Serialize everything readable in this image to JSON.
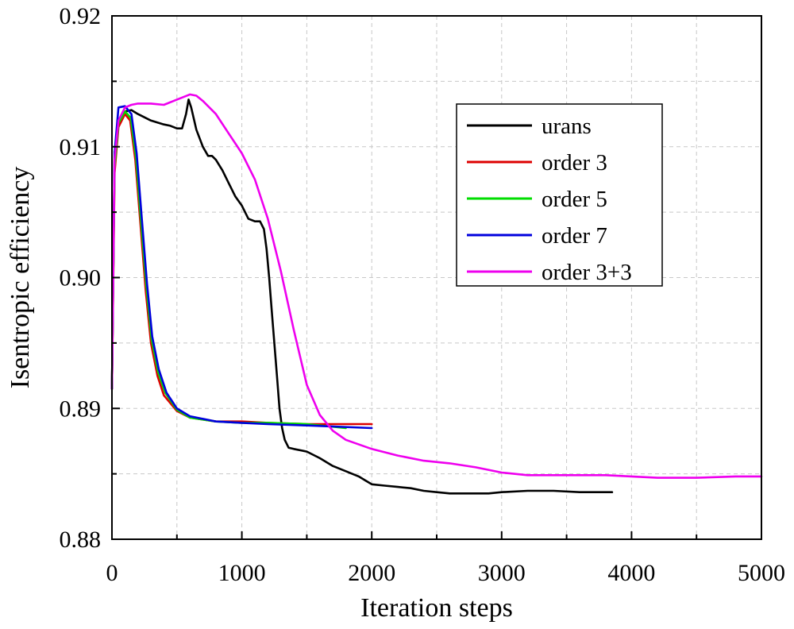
{
  "chart_data": {
    "type": "line",
    "title": "",
    "xlabel": "Iteration steps",
    "ylabel": "Isentropic efficiency",
    "xlim": [
      0,
      5000
    ],
    "ylim": [
      0.88,
      0.92
    ],
    "xticks": [
      0,
      1000,
      2000,
      3000,
      4000,
      5000
    ],
    "xtick_labels": [
      "0",
      "1000",
      "2000",
      "3000",
      "4000",
      "5000"
    ],
    "yticks": [
      0.88,
      0.89,
      0.9,
      0.91,
      0.92
    ],
    "ytick_labels": [
      "0.88",
      "0.89",
      "0.90",
      "0.91",
      "0.92"
    ],
    "grid": true,
    "legend_position": "top-right",
    "series": [
      {
        "name": "urans",
        "color": "#000000",
        "points": [
          [
            0,
            0.8915
          ],
          [
            20,
            0.9095
          ],
          [
            50,
            0.9118
          ],
          [
            100,
            0.9127
          ],
          [
            150,
            0.9128
          ],
          [
            200,
            0.9125
          ],
          [
            300,
            0.912
          ],
          [
            400,
            0.9117
          ],
          [
            450,
            0.9116
          ],
          [
            500,
            0.9114
          ],
          [
            540,
            0.9114
          ],
          [
            570,
            0.9125
          ],
          [
            590,
            0.9136
          ],
          [
            610,
            0.913
          ],
          [
            650,
            0.9113
          ],
          [
            700,
            0.91
          ],
          [
            740,
            0.9093
          ],
          [
            770,
            0.9093
          ],
          [
            800,
            0.909
          ],
          [
            850,
            0.9082
          ],
          [
            900,
            0.9072
          ],
          [
            950,
            0.9062
          ],
          [
            1000,
            0.9055
          ],
          [
            1050,
            0.9045
          ],
          [
            1100,
            0.9043
          ],
          [
            1140,
            0.9043
          ],
          [
            1170,
            0.9037
          ],
          [
            1190,
            0.9022
          ],
          [
            1210,
            0.9
          ],
          [
            1230,
            0.8975
          ],
          [
            1250,
            0.895
          ],
          [
            1270,
            0.8925
          ],
          [
            1290,
            0.89
          ],
          [
            1310,
            0.8885
          ],
          [
            1330,
            0.8876
          ],
          [
            1360,
            0.887
          ],
          [
            1400,
            0.8869
          ],
          [
            1500,
            0.8867
          ],
          [
            1600,
            0.8862
          ],
          [
            1700,
            0.8856
          ],
          [
            1800,
            0.8852
          ],
          [
            1900,
            0.8848
          ],
          [
            1950,
            0.8845
          ],
          [
            2000,
            0.8842
          ],
          [
            2100,
            0.8841
          ],
          [
            2200,
            0.884
          ],
          [
            2300,
            0.8839
          ],
          [
            2400,
            0.8837
          ],
          [
            2500,
            0.8836
          ],
          [
            2600,
            0.8835
          ],
          [
            2700,
            0.8835
          ],
          [
            2800,
            0.8835
          ],
          [
            2900,
            0.8835
          ],
          [
            3000,
            0.8836
          ],
          [
            3200,
            0.8837
          ],
          [
            3400,
            0.8837
          ],
          [
            3600,
            0.8836
          ],
          [
            3800,
            0.8836
          ],
          [
            3850,
            0.8836
          ]
        ]
      },
      {
        "name": "order 3",
        "color": "#dd0000",
        "points": [
          [
            0,
            0.8915
          ],
          [
            20,
            0.908
          ],
          [
            50,
            0.9115
          ],
          [
            100,
            0.9125
          ],
          [
            140,
            0.912
          ],
          [
            180,
            0.909
          ],
          [
            220,
            0.904
          ],
          [
            260,
            0.899
          ],
          [
            300,
            0.895
          ],
          [
            350,
            0.8925
          ],
          [
            400,
            0.891
          ],
          [
            500,
            0.8898
          ],
          [
            600,
            0.8893
          ],
          [
            800,
            0.889
          ],
          [
            1000,
            0.889
          ],
          [
            1200,
            0.8889
          ],
          [
            1500,
            0.8888
          ],
          [
            2000,
            0.8888
          ]
        ]
      },
      {
        "name": "order 5",
        "color": "#00dd00",
        "points": [
          [
            0,
            0.8915
          ],
          [
            20,
            0.9085
          ],
          [
            50,
            0.9118
          ],
          [
            100,
            0.9127
          ],
          [
            145,
            0.9122
          ],
          [
            185,
            0.9092
          ],
          [
            225,
            0.9042
          ],
          [
            265,
            0.8993
          ],
          [
            305,
            0.8953
          ],
          [
            355,
            0.8928
          ],
          [
            410,
            0.8912
          ],
          [
            500,
            0.8899
          ],
          [
            600,
            0.8893
          ],
          [
            800,
            0.889
          ],
          [
            1000,
            0.8889
          ],
          [
            1200,
            0.8889
          ],
          [
            1500,
            0.8888
          ],
          [
            1800,
            0.8885
          ]
        ]
      },
      {
        "name": "order 7",
        "color": "#0000dd",
        "points": [
          [
            0,
            0.8915
          ],
          [
            20,
            0.9095
          ],
          [
            50,
            0.913
          ],
          [
            100,
            0.9131
          ],
          [
            150,
            0.9125
          ],
          [
            190,
            0.9095
          ],
          [
            230,
            0.9045
          ],
          [
            270,
            0.8995
          ],
          [
            310,
            0.8955
          ],
          [
            360,
            0.893
          ],
          [
            420,
            0.8912
          ],
          [
            500,
            0.89
          ],
          [
            600,
            0.8894
          ],
          [
            800,
            0.889
          ],
          [
            1000,
            0.8889
          ],
          [
            1200,
            0.8888
          ],
          [
            1500,
            0.8887
          ],
          [
            2000,
            0.8885
          ]
        ]
      },
      {
        "name": "order 3+3",
        "color": "#ee00ee",
        "points": [
          [
            0,
            0.8915
          ],
          [
            20,
            0.909
          ],
          [
            50,
            0.912
          ],
          [
            100,
            0.913
          ],
          [
            150,
            0.9132
          ],
          [
            200,
            0.9133
          ],
          [
            300,
            0.9133
          ],
          [
            400,
            0.9132
          ],
          [
            500,
            0.9136
          ],
          [
            600,
            0.914
          ],
          [
            650,
            0.9139
          ],
          [
            700,
            0.9135
          ],
          [
            800,
            0.9125
          ],
          [
            900,
            0.911
          ],
          [
            1000,
            0.9095
          ],
          [
            1100,
            0.9075
          ],
          [
            1200,
            0.9045
          ],
          [
            1300,
            0.9005
          ],
          [
            1400,
            0.896
          ],
          [
            1500,
            0.8918
          ],
          [
            1600,
            0.8895
          ],
          [
            1700,
            0.8883
          ],
          [
            1800,
            0.8876
          ],
          [
            2000,
            0.8869
          ],
          [
            2200,
            0.8864
          ],
          [
            2400,
            0.886
          ],
          [
            2600,
            0.8858
          ],
          [
            2800,
            0.8855
          ],
          [
            3000,
            0.8851
          ],
          [
            3200,
            0.8849
          ],
          [
            3400,
            0.8849
          ],
          [
            3600,
            0.8849
          ],
          [
            3800,
            0.8849
          ],
          [
            4000,
            0.8848
          ],
          [
            4200,
            0.8847
          ],
          [
            4500,
            0.8847
          ],
          [
            4800,
            0.8848
          ],
          [
            5000,
            0.8848
          ]
        ]
      }
    ]
  }
}
